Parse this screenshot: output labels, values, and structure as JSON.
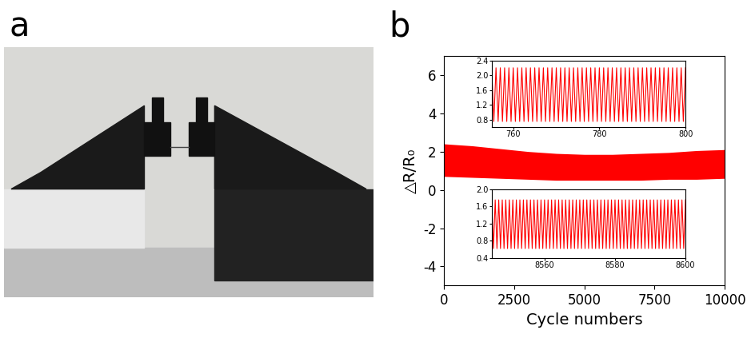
{
  "panel_labels": [
    "a",
    "b"
  ],
  "chart_data": {
    "type": "band",
    "xlabel": "Cycle numbers",
    "ylabel": "△R/R₀",
    "x": [
      0,
      1000,
      2000,
      3000,
      4000,
      5000,
      6000,
      7000,
      8000,
      9000,
      10000
    ],
    "upper": [
      2.4,
      2.3,
      2.15,
      2.0,
      1.9,
      1.85,
      1.85,
      1.9,
      1.95,
      2.05,
      2.1
    ],
    "lower": [
      0.7,
      0.65,
      0.6,
      0.55,
      0.5,
      0.5,
      0.5,
      0.5,
      0.55,
      0.55,
      0.6
    ],
    "color": "#ff0000",
    "xlim": [
      0,
      10000
    ],
    "ylim": [
      -5,
      7
    ],
    "xticks": [
      0,
      2500,
      5000,
      7500,
      10000
    ],
    "yticks": [
      -4,
      -2,
      0,
      2,
      4,
      6
    ],
    "insets": [
      {
        "type": "line",
        "color": "#ff0000",
        "x": [
          755,
          755.5,
          756,
          756.5,
          757,
          757.5,
          758,
          758.5,
          759,
          759.5,
          760,
          760.5,
          761,
          761.5,
          762,
          762.5,
          763,
          763.5,
          764,
          764.5,
          765,
          765.5,
          766,
          766.5,
          767,
          767.5,
          768,
          768.5,
          769,
          769.5,
          770,
          770.5,
          771,
          771.5,
          772,
          772.5,
          773,
          773.5,
          774,
          774.5,
          775,
          775.5,
          776,
          776.5,
          777,
          777.5,
          778,
          778.5,
          779,
          779.5,
          780,
          780.5,
          781,
          781.5,
          782,
          782.5,
          783,
          783.5,
          784,
          784.5,
          785,
          785.5,
          786,
          786.5,
          787,
          787.5,
          788,
          788.5,
          789,
          789.5,
          790,
          790.5,
          791,
          791.5,
          792,
          792.5,
          793,
          793.5,
          794,
          794.5,
          795,
          795.5,
          796,
          796.5,
          797,
          797.5,
          798,
          798.5,
          799,
          799.5,
          800
        ],
        "values": [
          2.2,
          0.75,
          2.2,
          0.75,
          2.2,
          0.75,
          2.2,
          0.75,
          2.2,
          0.75,
          2.2,
          0.75,
          2.2,
          0.75,
          2.2,
          0.75,
          2.2,
          0.75,
          2.2,
          0.75,
          2.2,
          0.75,
          2.2,
          0.75,
          2.2,
          0.75,
          2.2,
          0.75,
          2.2,
          0.75,
          2.2,
          0.75,
          2.2,
          0.75,
          2.2,
          0.75,
          2.2,
          0.75,
          2.2,
          0.75,
          2.2,
          0.75,
          2.2,
          0.75,
          2.2,
          0.75,
          2.2,
          0.75,
          2.2,
          0.75,
          2.2,
          0.75,
          2.2,
          0.75,
          2.2,
          0.75,
          2.2,
          0.75,
          2.2,
          0.75,
          2.2,
          0.75,
          2.2,
          0.75,
          2.2,
          0.75,
          2.2,
          0.75,
          2.2,
          0.75,
          2.2,
          0.75,
          2.2,
          0.75,
          2.2,
          0.75,
          2.2,
          0.75,
          2.2,
          0.75,
          2.2,
          0.75,
          2.2,
          0.75,
          2.2,
          0.75,
          2.2,
          0.75,
          2.2,
          0.75,
          2.2
        ],
        "xlim": [
          755,
          800
        ],
        "ylim": [
          0.6,
          2.4
        ],
        "xticks": [
          760,
          780,
          800
        ],
        "yticks": [
          {
            "value": 0.8,
            "label": "0.8"
          },
          {
            "value": 1.2,
            "label": "1.2"
          },
          {
            "value": 1.6,
            "label": "1.6"
          },
          {
            "value": 2.0,
            "label": "2.0"
          },
          {
            "value": 2.4,
            "label": "2.4"
          }
        ]
      },
      {
        "type": "line",
        "color": "#ff0000",
        "x": [
          8545,
          8545.5,
          8546,
          8546.5,
          8547,
          8547.5,
          8548,
          8548.5,
          8549,
          8549.5,
          8550,
          8550.5,
          8551,
          8551.5,
          8552,
          8552.5,
          8553,
          8553.5,
          8554,
          8554.5,
          8555,
          8555.5,
          8556,
          8556.5,
          8557,
          8557.5,
          8558,
          8558.5,
          8559,
          8559.5,
          8560,
          8560.5,
          8561,
          8561.5,
          8562,
          8562.5,
          8563,
          8563.5,
          8564,
          8564.5,
          8565,
          8565.5,
          8566,
          8566.5,
          8567,
          8567.5,
          8568,
          8568.5,
          8569,
          8569.5,
          8570,
          8570.5,
          8571,
          8571.5,
          8572,
          8572.5,
          8573,
          8573.5,
          8574,
          8574.5,
          8575,
          8575.5,
          8576,
          8576.5,
          8577,
          8577.5,
          8578,
          8578.5,
          8579,
          8579.5,
          8580,
          8580.5,
          8581,
          8581.5,
          8582,
          8582.5,
          8583,
          8583.5,
          8584,
          8584.5,
          8585,
          8585.5,
          8586,
          8586.5,
          8587,
          8587.5,
          8588,
          8588.5,
          8589,
          8589.5,
          8590,
          8590.5,
          8591,
          8591.5,
          8592,
          8592.5,
          8593,
          8593.5,
          8594,
          8594.5,
          8595,
          8595.5,
          8596,
          8596.5,
          8597,
          8597.5,
          8598,
          8598.5,
          8599,
          8599.5,
          8600
        ],
        "values": [
          1.75,
          0.62,
          1.75,
          0.62,
          1.75,
          0.62,
          1.75,
          0.62,
          1.75,
          0.62,
          1.75,
          0.62,
          1.75,
          0.62,
          1.75,
          0.62,
          1.75,
          0.62,
          1.75,
          0.62,
          1.75,
          0.62,
          1.75,
          0.62,
          1.75,
          0.62,
          1.75,
          0.62,
          1.75,
          0.62,
          1.75,
          0.62,
          1.75,
          0.62,
          1.75,
          0.62,
          1.75,
          0.62,
          1.75,
          0.62,
          1.75,
          0.62,
          1.75,
          0.62,
          1.75,
          0.62,
          1.75,
          0.62,
          1.75,
          0.62,
          1.75,
          0.62,
          1.75,
          0.62,
          1.75,
          0.62,
          1.75,
          0.62,
          1.75,
          0.62,
          1.75,
          0.62,
          1.75,
          0.62,
          1.75,
          0.62,
          1.75,
          0.62,
          1.75,
          0.62,
          1.75,
          0.62,
          1.75,
          0.62,
          1.75,
          0.62,
          1.75,
          0.62,
          1.75,
          0.62,
          1.75,
          0.62,
          1.75,
          0.62,
          1.75,
          0.62,
          1.75,
          0.62,
          1.75,
          0.62,
          1.75,
          0.62,
          1.75,
          0.62,
          1.75,
          0.62,
          1.75,
          0.62,
          1.75,
          0.62,
          1.75,
          0.62,
          1.75,
          0.62,
          1.75,
          0.62,
          1.75,
          0.62,
          1.75,
          0.62,
          1.75
        ],
        "xlim": [
          8545,
          8600
        ],
        "ylim": [
          0.4,
          2.0
        ],
        "xticks": [
          8560,
          8580,
          8600
        ],
        "yticks": [
          0.4,
          0.8,
          1.2,
          1.6,
          {
            "value": 2.0,
            "label": "2.0"
          }
        ]
      }
    ]
  }
}
